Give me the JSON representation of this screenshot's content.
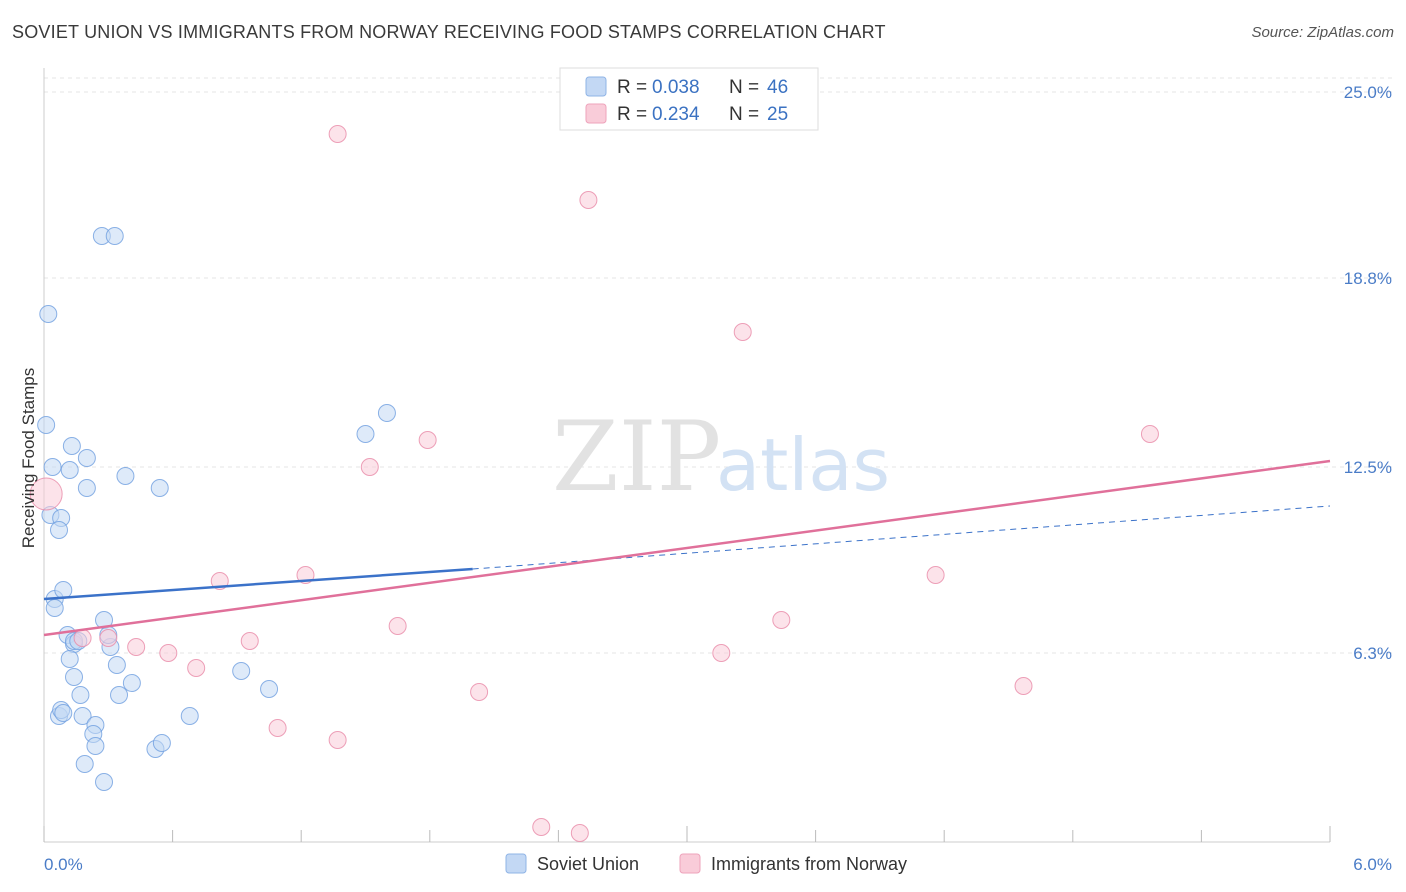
{
  "title": "SOVIET UNION VS IMMIGRANTS FROM NORWAY RECEIVING FOOD STAMPS CORRELATION CHART",
  "source": "Source: ZipAtlas.com",
  "watermark": {
    "zip": "ZIP",
    "atlas": "atlas"
  },
  "colors": {
    "blue": "#6f9fe0",
    "blue_fill": "#c3d8f4",
    "pink": "#e88aa8",
    "pink_fill": "#f9ccd9",
    "blue_line": "#3b72c9",
    "pink_line": "#e0709a",
    "tick_text": "#4a7cc7"
  },
  "legend": {
    "rows": [
      {
        "r_label": "R =",
        "r_value": "0.038",
        "n_label": "N =",
        "n_value": "46"
      },
      {
        "r_label": "R =",
        "r_value": "0.234",
        "n_label": "N =",
        "n_value": "25"
      }
    ]
  },
  "chart_data": {
    "type": "scatter",
    "title": "SOVIET UNION VS IMMIGRANTS FROM NORWAY RECEIVING FOOD STAMPS CORRELATION CHART",
    "xlabel": "",
    "ylabel": "Receiving Food Stamps",
    "xlim": [
      0,
      6.0
    ],
    "ylim": [
      0,
      25.8
    ],
    "x_tick_labels": [
      "0.0%",
      "6.0%"
    ],
    "y_tick_labels": [
      "25.0%",
      "18.8%",
      "12.5%",
      "6.3%"
    ],
    "y_tick_values": [
      25.0,
      18.8,
      12.5,
      6.3
    ],
    "grid": true,
    "legend_position": "bottom",
    "series": [
      {
        "name": "Soviet Union",
        "color": "#6f9fe0",
        "points": [
          [
            0.02,
            17.6
          ],
          [
            0.01,
            13.9
          ],
          [
            0.04,
            12.5
          ],
          [
            0.03,
            10.9
          ],
          [
            0.08,
            10.8
          ],
          [
            0.07,
            10.4
          ],
          [
            0.13,
            13.2
          ],
          [
            0.12,
            12.4
          ],
          [
            0.2,
            12.8
          ],
          [
            0.2,
            11.8
          ],
          [
            0.27,
            20.2
          ],
          [
            0.33,
            20.2
          ],
          [
            0.38,
            12.2
          ],
          [
            0.54,
            11.8
          ],
          [
            1.5,
            13.6
          ],
          [
            1.6,
            14.3
          ],
          [
            0.05,
            8.1
          ],
          [
            0.05,
            7.8
          ],
          [
            0.09,
            8.4
          ],
          [
            0.11,
            6.9
          ],
          [
            0.14,
            6.6
          ],
          [
            0.12,
            6.1
          ],
          [
            0.14,
            5.5
          ],
          [
            0.17,
            4.9
          ],
          [
            0.18,
            4.2
          ],
          [
            0.24,
            3.9
          ],
          [
            0.23,
            3.6
          ],
          [
            0.24,
            3.2
          ],
          [
            0.19,
            2.6
          ],
          [
            0.28,
            2.0
          ],
          [
            0.07,
            4.2
          ],
          [
            0.08,
            4.4
          ],
          [
            0.09,
            4.3
          ],
          [
            0.28,
            7.4
          ],
          [
            0.31,
            6.5
          ],
          [
            0.34,
            5.9
          ],
          [
            0.35,
            4.9
          ],
          [
            0.41,
            5.3
          ],
          [
            0.52,
            3.1
          ],
          [
            0.55,
            3.3
          ],
          [
            0.68,
            4.2
          ],
          [
            0.92,
            5.7
          ],
          [
            1.05,
            5.1
          ],
          [
            0.3,
            6.9
          ],
          [
            0.14,
            6.7
          ],
          [
            0.16,
            6.7
          ]
        ]
      },
      {
        "name": "Immigrants from Norway",
        "color": "#e88aa8",
        "points": [
          [
            0.01,
            11.6
          ],
          [
            0.18,
            6.8
          ],
          [
            0.3,
            6.8
          ],
          [
            0.43,
            6.5
          ],
          [
            0.58,
            6.3
          ],
          [
            0.71,
            5.8
          ],
          [
            0.82,
            8.7
          ],
          [
            0.96,
            6.7
          ],
          [
            1.09,
            3.8
          ],
          [
            1.22,
            8.9
          ],
          [
            1.37,
            3.4
          ],
          [
            1.52,
            12.5
          ],
          [
            1.65,
            7.2
          ],
          [
            1.79,
            13.4
          ],
          [
            2.03,
            5.0
          ],
          [
            2.32,
            0.5
          ],
          [
            2.5,
            0.3
          ],
          [
            2.54,
            21.4
          ],
          [
            3.16,
            6.3
          ],
          [
            3.26,
            17.0
          ],
          [
            3.44,
            7.4
          ],
          [
            4.16,
            8.9
          ],
          [
            4.57,
            5.2
          ],
          [
            5.16,
            13.6
          ],
          [
            1.37,
            23.6
          ]
        ]
      }
    ],
    "trend_lines": [
      {
        "series": "Soviet Union",
        "x": [
          0.0,
          2.0
        ],
        "y": [
          8.1,
          9.1
        ],
        "extended_x": [
          2.0,
          6.0
        ],
        "extended_y": [
          9.1,
          11.2
        ]
      },
      {
        "series": "Immigrants from Norway",
        "x": [
          0.0,
          6.0
        ],
        "y": [
          6.9,
          12.7
        ]
      }
    ]
  }
}
